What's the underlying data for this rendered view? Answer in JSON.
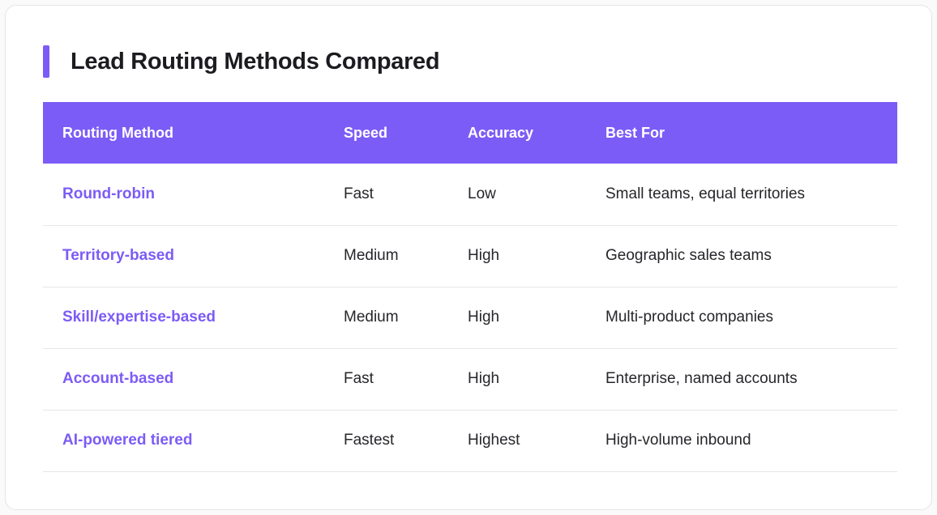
{
  "page": {
    "title": "Lead Routing Methods Compared"
  },
  "colors": {
    "accent": "#7C5CF6",
    "header_bg": "#7C5CF6",
    "method_text": "#7C5CF6",
    "title_text": "#1B1B20",
    "body_text": "#26262B",
    "row_divider": "#E6E6E9",
    "card_bg": "#FFFFFF",
    "card_border": "#E3E5E8"
  },
  "table": {
    "columns": [
      "Routing Method",
      "Speed",
      "Accuracy",
      "Best For"
    ],
    "rows": [
      {
        "method": "Round-robin",
        "speed": "Fast",
        "accuracy": "Low",
        "best_for": "Small teams, equal territories"
      },
      {
        "method": "Territory-based",
        "speed": "Medium",
        "accuracy": "High",
        "best_for": "Geographic sales teams"
      },
      {
        "method": "Skill/expertise-based",
        "speed": "Medium",
        "accuracy": "High",
        "best_for": "Multi-product companies"
      },
      {
        "method": "Account-based",
        "speed": "Fast",
        "accuracy": "High",
        "best_for": "Enterprise, named accounts"
      },
      {
        "method": "AI-powered tiered",
        "speed": "Fastest",
        "accuracy": "Highest",
        "best_for": "High-volume inbound"
      }
    ]
  },
  "chart_data": {
    "type": "table",
    "title": "Lead Routing Methods Compared",
    "columns": [
      "Routing Method",
      "Speed",
      "Accuracy",
      "Best For"
    ],
    "rows": [
      [
        "Round-robin",
        "Fast",
        "Low",
        "Small teams, equal territories"
      ],
      [
        "Territory-based",
        "Medium",
        "High",
        "Geographic sales teams"
      ],
      [
        "Skill/expertise-based",
        "Medium",
        "High",
        "Multi-product companies"
      ],
      [
        "Account-based",
        "Fast",
        "High",
        "Enterprise, named accounts"
      ],
      [
        "AI-powered tiered",
        "Fastest",
        "Highest",
        "High-volume inbound"
      ]
    ]
  }
}
